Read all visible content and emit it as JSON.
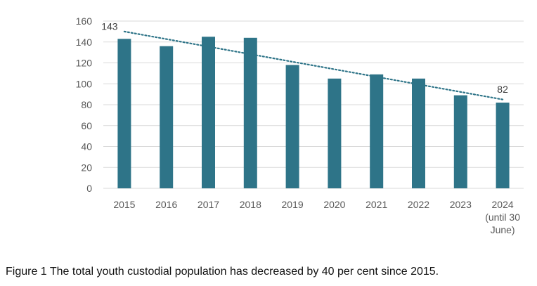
{
  "chart_data": {
    "type": "bar",
    "categories": [
      "2015",
      "2016",
      "2017",
      "2018",
      "2019",
      "2020",
      "2021",
      "2022",
      "2023",
      "2024 (until 30 June)"
    ],
    "category_lines": [
      [
        "2015"
      ],
      [
        "2016"
      ],
      [
        "2017"
      ],
      [
        "2018"
      ],
      [
        "2019"
      ],
      [
        "2020"
      ],
      [
        "2021"
      ],
      [
        "2022"
      ],
      [
        "2023"
      ],
      [
        "2024",
        "(until 30",
        "June)"
      ]
    ],
    "values": [
      143,
      136,
      145,
      144,
      118,
      105,
      109,
      105,
      89,
      82
    ],
    "data_labels": [
      {
        "index": 0,
        "text": "143"
      },
      {
        "index": 9,
        "text": "82"
      }
    ],
    "trendline": {
      "type": "linear",
      "style": "dotted",
      "start": 150,
      "end": 85
    },
    "y_ticks": [
      0,
      20,
      40,
      60,
      80,
      100,
      120,
      140,
      160
    ],
    "ylim": [
      0,
      160
    ],
    "grid": true,
    "legend": "none",
    "colors": {
      "bar": "#2e7488",
      "trend": "#2e7488",
      "grid": "#d9d9d9"
    }
  },
  "caption": "Figure 1 The total youth custodial population has decreased by 40 per cent since 2015."
}
